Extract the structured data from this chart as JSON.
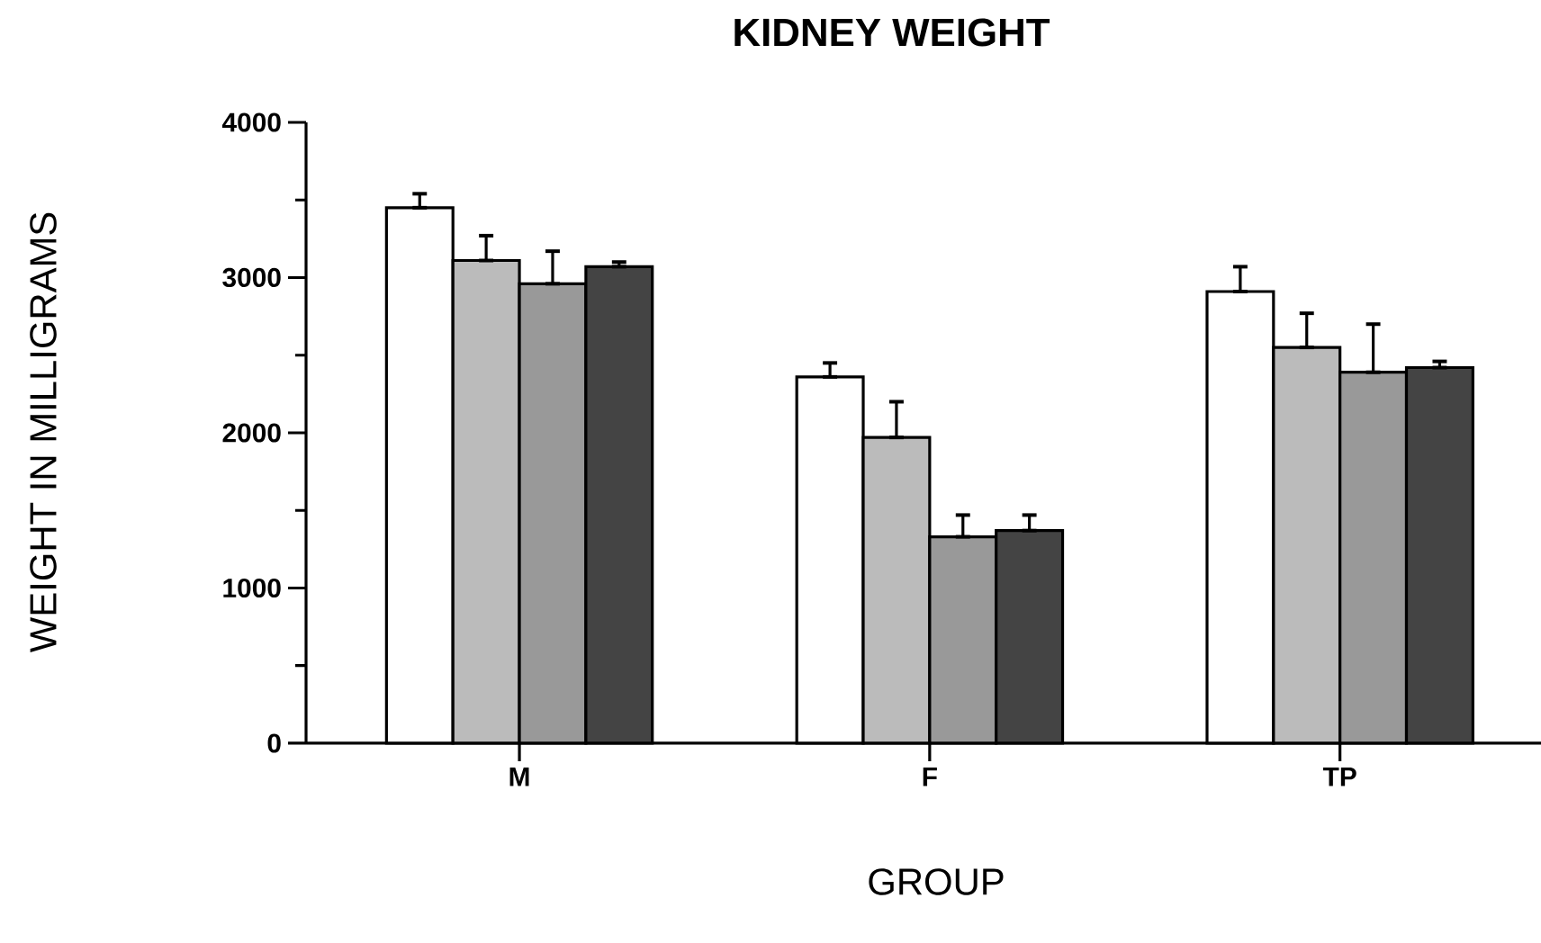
{
  "chart_data": {
    "type": "bar",
    "title": "KIDNEY WEIGHT",
    "xlabel": "GROUP",
    "ylabel": "WEIGHT IN MILLIGRAMS",
    "categories": [
      "M",
      "F",
      "TP"
    ],
    "series": [
      {
        "color": "#ffffff",
        "values": [
          3450,
          2360,
          2910
        ],
        "errors": [
          [
            3450,
            3540
          ],
          [
            2360,
            2450
          ],
          [
            2910,
            3070
          ]
        ]
      },
      {
        "color": "#bbbbbb",
        "values": [
          3110,
          1970,
          2550
        ],
        "errors": [
          [
            3110,
            3270
          ],
          [
            1970,
            2200
          ],
          [
            2550,
            2770
          ]
        ]
      },
      {
        "color": "#999999",
        "values": [
          2960,
          1330,
          2390
        ],
        "errors": [
          [
            2960,
            3170
          ],
          [
            1330,
            1470
          ],
          [
            2390,
            2700
          ]
        ]
      },
      {
        "color": "#444444",
        "values": [
          3070,
          1370,
          2420
        ],
        "errors": [
          [
            3070,
            3100
          ],
          [
            1370,
            1470
          ],
          [
            2420,
            2460
          ]
        ]
      }
    ],
    "ylim": [
      0,
      4000
    ],
    "yticks": [
      0,
      1000,
      2000,
      3000,
      4000
    ],
    "grid": false
  }
}
